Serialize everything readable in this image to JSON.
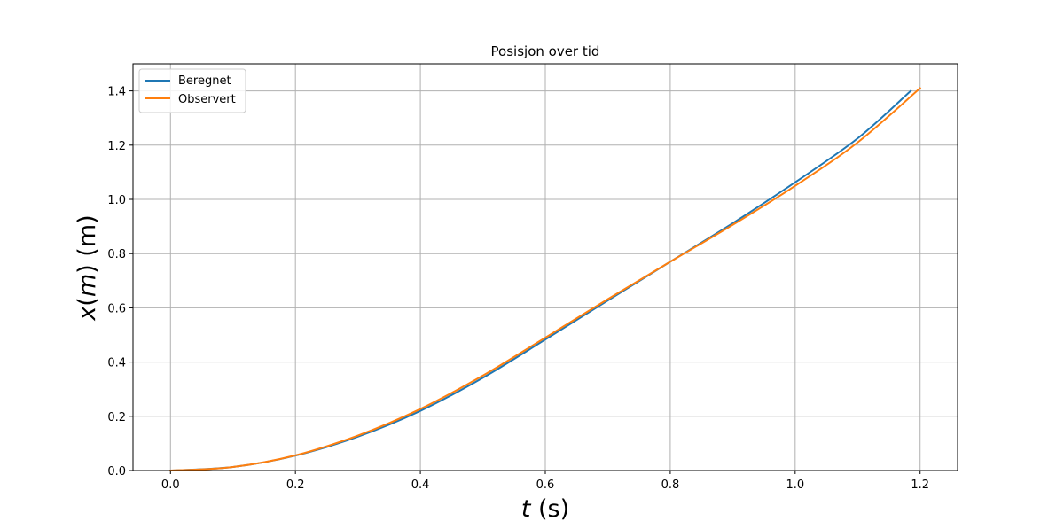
{
  "chart_data": {
    "type": "line",
    "title": "Posisjon over tid",
    "xlabel": {
      "var": "t",
      "unit": " (s)"
    },
    "ylabel": {
      "fn": "x",
      "arg": "m",
      "unit": " (m)"
    },
    "xlim": [
      -0.06,
      1.26
    ],
    "ylim": [
      0,
      1.5
    ],
    "xticks": [
      "0.0",
      "0.2",
      "0.4",
      "0.6",
      "0.8",
      "1.0",
      "1.2"
    ],
    "yticks": [
      "0.0",
      "0.2",
      "0.4",
      "0.6",
      "0.8",
      "1.0",
      "1.2",
      "1.4"
    ],
    "grid": true,
    "legend_position": "top-left",
    "series": [
      {
        "name": "Beregnet",
        "color": "#1f77b4",
        "x": [
          0.0,
          0.1,
          0.2,
          0.3,
          0.4,
          0.5,
          0.6,
          0.7,
          0.8,
          0.9,
          1.0,
          1.1,
          1.185
        ],
        "y": [
          0.0,
          0.013,
          0.055,
          0.125,
          0.22,
          0.342,
          0.483,
          0.627,
          0.77,
          0.912,
          1.063,
          1.225,
          1.4
        ]
      },
      {
        "name": "Observert",
        "color": "#ff7f0e",
        "x": [
          0.0,
          0.1,
          0.2,
          0.3,
          0.4,
          0.5,
          0.6,
          0.7,
          0.8,
          0.9,
          1.0,
          1.1,
          1.2
        ],
        "y": [
          0.0,
          0.013,
          0.056,
          0.129,
          0.227,
          0.35,
          0.49,
          0.632,
          0.77,
          0.906,
          1.05,
          1.21,
          1.41
        ]
      }
    ]
  }
}
